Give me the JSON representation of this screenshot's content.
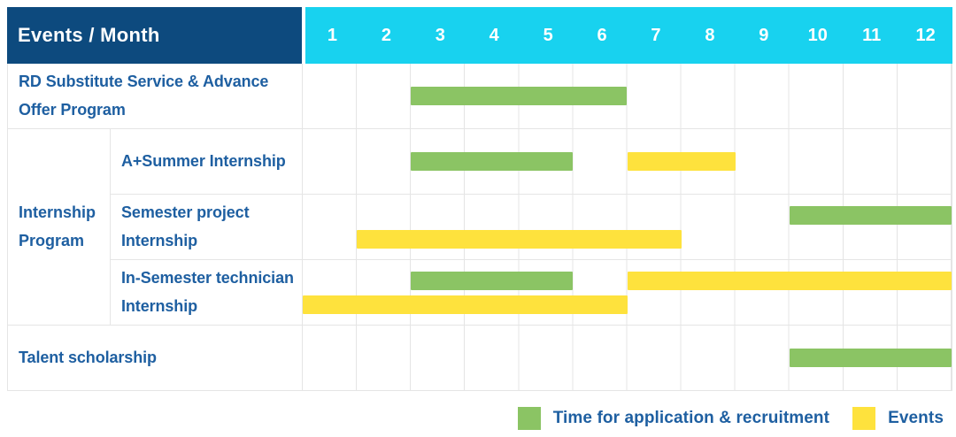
{
  "header": {
    "title": "Events / Month"
  },
  "colors": {
    "header_bg": "#0d4a7e",
    "months_bg": "#18d2ef",
    "header_text": "#ffffff",
    "label_text": "#1e5fa1",
    "grid_line": "#e4e4e4",
    "bar_green": "#8bc464",
    "bar_yellow": "#fee23d"
  },
  "chart_data": {
    "type": "bar",
    "variant": "gantt-timeline",
    "title": "Events / Month",
    "x_axis": {
      "unit": "month",
      "ticks": [
        "1",
        "2",
        "3",
        "4",
        "5",
        "6",
        "7",
        "8",
        "9",
        "10",
        "11",
        "12"
      ],
      "range": [
        1,
        12
      ],
      "grid": true
    },
    "series": [
      {
        "id": "recruitment",
        "label": "Time for application & recruitment",
        "color": "#8bc464"
      },
      {
        "id": "events",
        "label": "Events",
        "color": "#fee23d"
      }
    ],
    "rows": [
      {
        "group": "",
        "label": "RD Substitute Service & Advance Offer Program",
        "lines": 1,
        "bars": [
          {
            "series": "recruitment",
            "start_month": 3,
            "end_month": 6,
            "line": 0
          }
        ]
      },
      {
        "group": "Internship Program",
        "label": "A+Summer Internship",
        "lines": 1,
        "bars": [
          {
            "series": "recruitment",
            "start_month": 3,
            "end_month": 5,
            "line": 0
          },
          {
            "series": "events",
            "start_month": 7,
            "end_month": 8,
            "line": 0
          }
        ]
      },
      {
        "group": "Internship Program",
        "label": "Semester project Internship",
        "lines": 2,
        "bars": [
          {
            "series": "recruitment",
            "start_month": 10,
            "end_month": 12,
            "line": 1
          },
          {
            "series": "events",
            "start_month": 2,
            "end_month": 7,
            "line": 2
          }
        ]
      },
      {
        "group": "Internship Program",
        "label": "In-Semester technician Internship",
        "lines": 2,
        "bars": [
          {
            "series": "recruitment",
            "start_month": 3,
            "end_month": 5,
            "line": 1
          },
          {
            "series": "events",
            "start_month": 7,
            "end_month": 12,
            "line": 1
          },
          {
            "series": "events",
            "start_month": 1,
            "end_month": 6,
            "line": 2
          }
        ]
      },
      {
        "group": "",
        "label": "Talent scholarship",
        "lines": 1,
        "bars": [
          {
            "series": "recruitment",
            "start_month": 10,
            "end_month": 12,
            "line": 0
          }
        ]
      }
    ],
    "legend": [
      {
        "series": "recruitment",
        "label": "Time for application & recruitment"
      },
      {
        "series": "events",
        "label": "Events"
      }
    ],
    "legend_position": "bottom-right"
  }
}
